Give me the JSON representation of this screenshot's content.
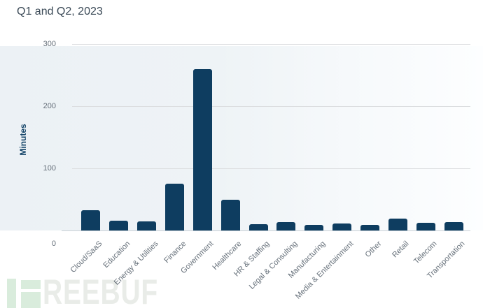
{
  "chart_data": {
    "type": "bar",
    "title": "Q1 and Q2, 2023",
    "xlabel": "",
    "ylabel": "Minutes",
    "categories": [
      "Cloud/SaaS",
      "Education",
      "Energy & Utilities",
      "Finance",
      "Government",
      "Healthcare",
      "HR & Staffing",
      "Legal & Consulting",
      "Manufacturing",
      "Media & Entertainment",
      "Other",
      "Retail",
      "Telecom",
      "Transportation"
    ],
    "values": [
      33,
      16,
      15,
      75,
      260,
      50,
      10,
      14,
      9,
      11,
      9,
      19,
      12,
      14
    ],
    "ylim": [
      0,
      300
    ],
    "yticks": [
      0,
      100,
      200,
      300
    ],
    "grid": true,
    "legend": false,
    "bar_color": "#0e3d60",
    "gridline_color": "#dcdee0",
    "axis_label_color": "#66707a",
    "yaxis_title_color": "#16466a"
  },
  "watermark": {
    "brand": "FREEBUF",
    "text": "REEBUF",
    "logo_color": "#d9ecdc",
    "text_color": "#e9ece8"
  }
}
